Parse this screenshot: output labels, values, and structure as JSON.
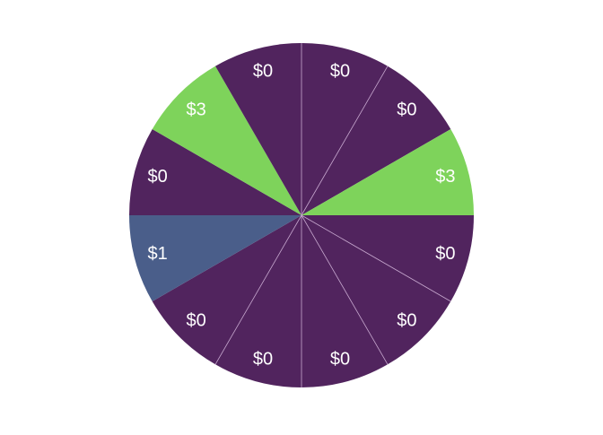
{
  "wheel": {
    "segments": [
      {
        "label": "$0",
        "color": "#51245e"
      },
      {
        "label": "$0",
        "color": "#51245e"
      },
      {
        "label": "$3",
        "color": "#7ed35b"
      },
      {
        "label": "$0",
        "color": "#51245e"
      },
      {
        "label": "$0",
        "color": "#51245e"
      },
      {
        "label": "$0",
        "color": "#51245e"
      },
      {
        "label": "$0",
        "color": "#51245e"
      },
      {
        "label": "$0",
        "color": "#51245e"
      },
      {
        "label": "$1",
        "color": "#4a5e8a"
      },
      {
        "label": "$0",
        "color": "#51245e"
      },
      {
        "label": "$3",
        "color": "#7ed35b"
      },
      {
        "label": "$0",
        "color": "#51245e"
      }
    ],
    "divider_color": "#c7a8cf",
    "text_color": "#ffffff"
  }
}
